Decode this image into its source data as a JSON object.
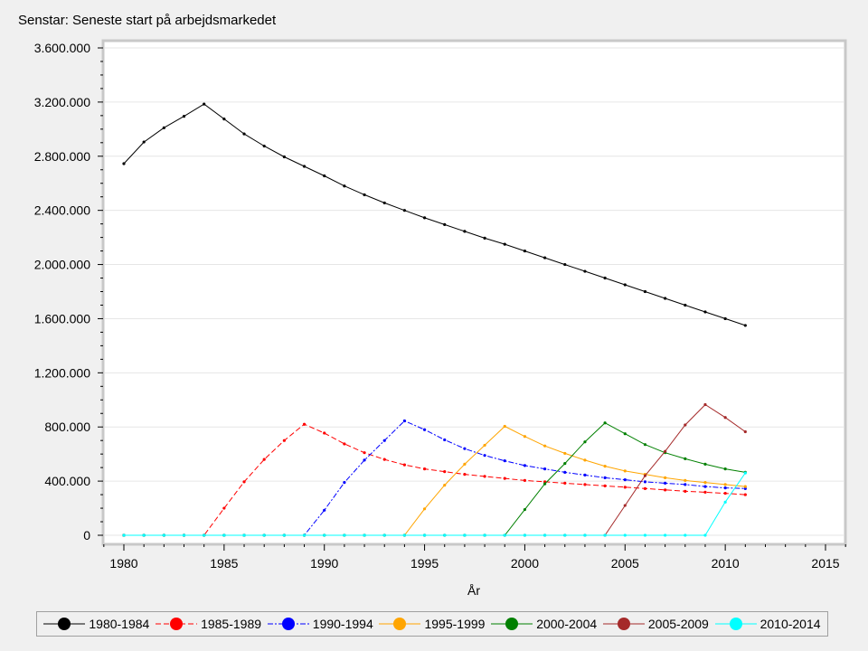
{
  "chart_data": {
    "type": "line",
    "title": "Senstar: Seneste start på arbejdsmarkedet",
    "xlabel": "År",
    "ylabel": "",
    "xlim": [
      1979,
      2016
    ],
    "ylim": [
      -50000,
      3650000
    ],
    "xticks": [
      1980,
      1985,
      1990,
      1995,
      2000,
      2005,
      2010,
      2015
    ],
    "xtick_labels": [
      "1980",
      "1985",
      "1990",
      "1995",
      "2000",
      "2005",
      "2010",
      "2015"
    ],
    "yticks": [
      0,
      400000,
      800000,
      1200000,
      1600000,
      2000000,
      2400000,
      2800000,
      3200000,
      3600000
    ],
    "ytick_labels": [
      "0",
      "400.000",
      "800.000",
      "1.200.000",
      "1.600.000",
      "2.000.000",
      "2.400.000",
      "2.800.000",
      "3.200.000",
      "3.600.000"
    ],
    "grid": true,
    "legend_position": "bottom",
    "x": [
      1980,
      1981,
      1982,
      1983,
      1984,
      1985,
      1986,
      1987,
      1988,
      1989,
      1990,
      1991,
      1992,
      1993,
      1994,
      1995,
      1996,
      1997,
      1998,
      1999,
      2000,
      2001,
      2002,
      2003,
      2004,
      2005,
      2006,
      2007,
      2008,
      2009,
      2010,
      2011
    ],
    "series": [
      {
        "name": "1980-1984",
        "color": "#000000",
        "dash": "",
        "values": [
          2745000,
          2905000,
          3010000,
          3095000,
          3185000,
          3075000,
          2965000,
          2875000,
          2795000,
          2725000,
          2655000,
          2580000,
          2515000,
          2455000,
          2400000,
          2345000,
          2295000,
          2245000,
          2195000,
          2150000,
          2100000,
          2050000,
          2000000,
          1950000,
          1900000,
          1850000,
          1800000,
          1750000,
          1700000,
          1650000,
          1600000,
          1550000
        ]
      },
      {
        "name": "1985-1989",
        "color": "#ff0000",
        "dash": "6,3",
        "values": [
          0,
          0,
          0,
          0,
          0,
          200000,
          395000,
          560000,
          700000,
          820000,
          755000,
          675000,
          610000,
          560000,
          520000,
          490000,
          470000,
          450000,
          435000,
          420000,
          405000,
          395000,
          385000,
          375000,
          365000,
          355000,
          345000,
          335000,
          325000,
          318000,
          310000,
          300000
        ]
      },
      {
        "name": "1990-1994",
        "color": "#0000ff",
        "dash": "6,2,2,2",
        "values": [
          0,
          0,
          0,
          0,
          0,
          0,
          0,
          0,
          0,
          0,
          185000,
          390000,
          555000,
          700000,
          845000,
          780000,
          705000,
          640000,
          590000,
          550000,
          515000,
          490000,
          465000,
          445000,
          425000,
          410000,
          395000,
          385000,
          375000,
          360000,
          350000,
          345000
        ]
      },
      {
        "name": "1995-1999",
        "color": "#ffa500",
        "dash": "",
        "values": [
          0,
          0,
          0,
          0,
          0,
          0,
          0,
          0,
          0,
          0,
          0,
          0,
          0,
          0,
          0,
          195000,
          370000,
          525000,
          665000,
          805000,
          730000,
          660000,
          605000,
          555000,
          510000,
          475000,
          450000,
          425000,
          405000,
          390000,
          375000,
          360000
        ]
      },
      {
        "name": "2000-2004",
        "color": "#008000",
        "dash": "",
        "values": [
          0,
          0,
          0,
          0,
          0,
          0,
          0,
          0,
          0,
          0,
          0,
          0,
          0,
          0,
          0,
          0,
          0,
          0,
          0,
          0,
          190000,
          380000,
          530000,
          690000,
          830000,
          750000,
          670000,
          610000,
          565000,
          525000,
          490000,
          465000
        ]
      },
      {
        "name": "2005-2009",
        "color": "#a52a2a",
        "dash": "",
        "values": [
          0,
          0,
          0,
          0,
          0,
          0,
          0,
          0,
          0,
          0,
          0,
          0,
          0,
          0,
          0,
          0,
          0,
          0,
          0,
          0,
          0,
          0,
          0,
          0,
          0,
          220000,
          440000,
          620000,
          815000,
          965000,
          870000,
          765000
        ]
      },
      {
        "name": "2010-2014",
        "color": "#00ffff",
        "dash": "",
        "values": [
          0,
          0,
          0,
          0,
          0,
          0,
          0,
          0,
          0,
          0,
          0,
          0,
          0,
          0,
          0,
          0,
          0,
          0,
          0,
          0,
          0,
          0,
          0,
          0,
          0,
          0,
          0,
          0,
          0,
          0,
          245000,
          460000
        ]
      }
    ]
  }
}
